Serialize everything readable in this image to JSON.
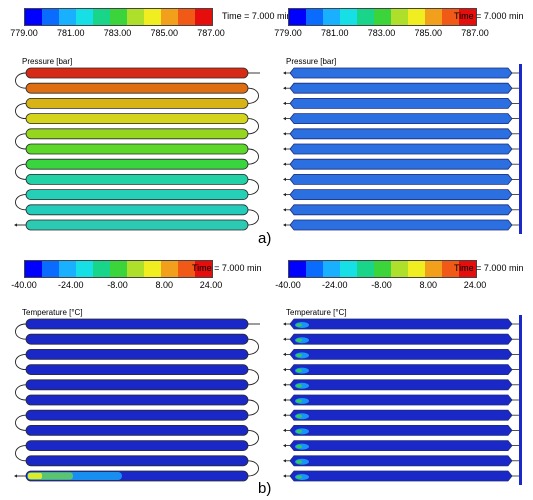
{
  "panels": [
    {
      "id": "a-left",
      "legend_ticks": [
        "779.00",
        "781.00",
        "783.00",
        "785.00",
        "787.00"
      ],
      "time": "Time = 7.000 min",
      "quantity": "Pressure [bar]",
      "tube_colors": [
        "#d62a16",
        "#df6e12",
        "#d7b318",
        "#d4d41d",
        "#97d61e",
        "#5bd82a",
        "#39d53f",
        "#22d1a5",
        "#25d0b7",
        "#23cdbb",
        "#2ccab2"
      ],
      "manifold": false
    },
    {
      "id": "a-right",
      "legend_ticks": [
        "779.00",
        "781.00",
        "783.00",
        "785.00",
        "787.00"
      ],
      "time": "Time = 7.000 min",
      "quantity": "Pressure [bar]",
      "tube_colors": [
        "#2b6fe0",
        "#2b6fe0",
        "#2b6fe0",
        "#2b6fe0",
        "#2b6fe0",
        "#2b6fe0",
        "#2b6fe0",
        "#2b6fe0",
        "#2b6fe0",
        "#2b6fe0",
        "#2b6fe0"
      ],
      "manifold": true
    },
    {
      "id": "b-left",
      "legend_ticks": [
        "-40.00",
        "-24.00",
        "-8.00",
        "8.00",
        "24.00"
      ],
      "time": "Time = 7.000 min",
      "quantity": "Temperature [°C]",
      "tube_colors": [
        "#1a28c8",
        "#1a28c8",
        "#1a28c8",
        "#1a28c8",
        "#1a28c8",
        "#1a28c8",
        "#1a28c8",
        "#1a28c8",
        "#1a28c8",
        "#1a28c8",
        "#1a28c8"
      ],
      "manifold": false
    },
    {
      "id": "b-right",
      "legend_ticks": [
        "-40.00",
        "-24.00",
        "-8.00",
        "8.00",
        "24.00"
      ],
      "time": "Time = 7.000 min",
      "quantity": "Temperature [°C]",
      "tube_colors": [
        "#1a28c8",
        "#1a28c8",
        "#1a28c8",
        "#1a28c8",
        "#1a28c8",
        "#1a28c8",
        "#1a28c8",
        "#1a28c8",
        "#1a28c8",
        "#1a28c8",
        "#1a28c8"
      ],
      "manifold": true
    }
  ],
  "legend_colors": [
    "#0000ff",
    "#0a6cff",
    "#19b0ff",
    "#16e0e6",
    "#18d58a",
    "#3bd43b",
    "#aee02b",
    "#f0ee20",
    "#f2a01b",
    "#f05a16",
    "#e60d0d"
  ],
  "labels": {
    "a": "a)",
    "b": "b)"
  }
}
